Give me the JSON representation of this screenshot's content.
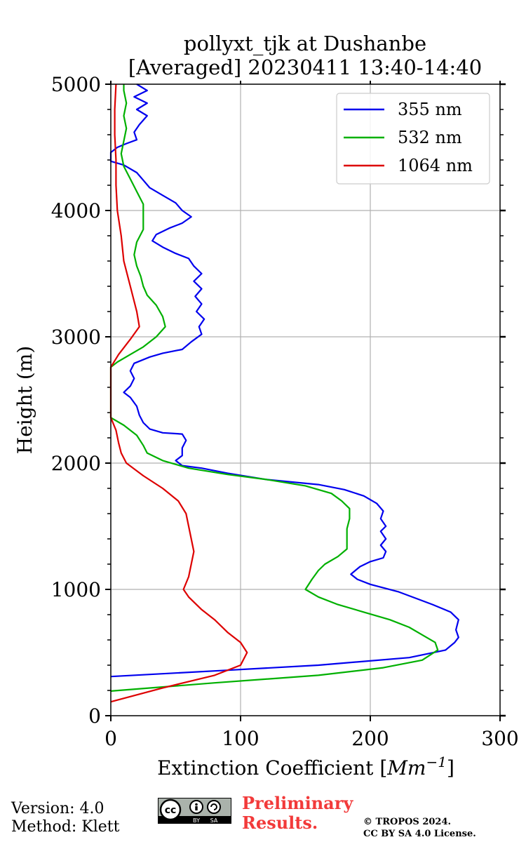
{
  "chart_data": {
    "type": "line",
    "title_line1": "pollyxt_tjk at Dushanbe",
    "title_line2": "[Averaged] 20230411 13:40-14:40",
    "xlabel_text": "Extinction Coefficient [",
    "xlabel_unit": "Mm",
    "xlabel_exp": "−1",
    "xlabel_end": "]",
    "ylabel": "Height (m)",
    "xlim": [
      0,
      300
    ],
    "ylim": [
      0,
      5000
    ],
    "xticks": [
      0,
      100,
      200,
      300
    ],
    "yticks": [
      0,
      1000,
      2000,
      3000,
      4000,
      5000
    ],
    "grid": true,
    "legend_position": "top-right",
    "series": [
      {
        "name": "355 nm",
        "color": "#0000ee",
        "points": [
          [
            0,
            310
          ],
          [
            90,
            360
          ],
          [
            160,
            400
          ],
          [
            230,
            460
          ],
          [
            258,
            520
          ],
          [
            265,
            580
          ],
          [
            268,
            620
          ],
          [
            266,
            680
          ],
          [
            268,
            760
          ],
          [
            262,
            820
          ],
          [
            248,
            880
          ],
          [
            235,
            930
          ],
          [
            222,
            980
          ],
          [
            200,
            1040
          ],
          [
            190,
            1080
          ],
          [
            185,
            1120
          ],
          [
            192,
            1180
          ],
          [
            200,
            1220
          ],
          [
            210,
            1250
          ],
          [
            212,
            1300
          ],
          [
            208,
            1350
          ],
          [
            212,
            1400
          ],
          [
            208,
            1460
          ],
          [
            212,
            1500
          ],
          [
            208,
            1560
          ],
          [
            210,
            1620
          ],
          [
            205,
            1680
          ],
          [
            195,
            1740
          ],
          [
            180,
            1790
          ],
          [
            160,
            1830
          ],
          [
            120,
            1870
          ],
          [
            90,
            1920
          ],
          [
            70,
            1960
          ],
          [
            55,
            1980
          ],
          [
            50,
            2020
          ],
          [
            55,
            2060
          ],
          [
            55,
            2120
          ],
          [
            58,
            2180
          ],
          [
            55,
            2230
          ],
          [
            40,
            2240
          ],
          [
            30,
            2270
          ],
          [
            25,
            2320
          ],
          [
            22,
            2380
          ],
          [
            20,
            2450
          ],
          [
            15,
            2520
          ],
          [
            10,
            2560
          ],
          [
            15,
            2610
          ],
          [
            18,
            2670
          ],
          [
            15,
            2730
          ],
          [
            18,
            2790
          ],
          [
            30,
            2840
          ],
          [
            40,
            2870
          ],
          [
            55,
            2900
          ],
          [
            62,
            2960
          ],
          [
            70,
            3020
          ],
          [
            68,
            3080
          ],
          [
            72,
            3140
          ],
          [
            66,
            3200
          ],
          [
            70,
            3260
          ],
          [
            65,
            3320
          ],
          [
            70,
            3380
          ],
          [
            64,
            3440
          ],
          [
            70,
            3500
          ],
          [
            64,
            3560
          ],
          [
            60,
            3620
          ],
          [
            50,
            3660
          ],
          [
            40,
            3710
          ],
          [
            32,
            3760
          ],
          [
            35,
            3810
          ],
          [
            45,
            3860
          ],
          [
            55,
            3900
          ],
          [
            62,
            3950
          ],
          [
            55,
            4000
          ],
          [
            50,
            4060
          ],
          [
            40,
            4120
          ],
          [
            30,
            4180
          ],
          [
            25,
            4240
          ],
          [
            20,
            4300
          ],
          [
            10,
            4360
          ],
          [
            0,
            4390
          ],
          [
            0,
            4460
          ],
          [
            5,
            4500
          ],
          [
            12,
            4530
          ],
          [
            20,
            4560
          ],
          [
            18,
            4620
          ],
          [
            22,
            4680
          ],
          [
            28,
            4750
          ],
          [
            20,
            4800
          ],
          [
            28,
            4850
          ],
          [
            18,
            4900
          ],
          [
            28,
            4950
          ],
          [
            20,
            5000
          ]
        ]
      },
      {
        "name": "532 nm",
        "color": "#00b000",
        "points": [
          [
            0,
            195
          ],
          [
            80,
            260
          ],
          [
            160,
            320
          ],
          [
            210,
            380
          ],
          [
            240,
            440
          ],
          [
            252,
            520
          ],
          [
            250,
            580
          ],
          [
            240,
            640
          ],
          [
            230,
            700
          ],
          [
            215,
            760
          ],
          [
            195,
            820
          ],
          [
            175,
            880
          ],
          [
            160,
            940
          ],
          [
            150,
            1000
          ],
          [
            155,
            1080
          ],
          [
            160,
            1150
          ],
          [
            165,
            1200
          ],
          [
            175,
            1260
          ],
          [
            182,
            1320
          ],
          [
            182,
            1400
          ],
          [
            182,
            1480
          ],
          [
            184,
            1560
          ],
          [
            184,
            1640
          ],
          [
            178,
            1700
          ],
          [
            170,
            1760
          ],
          [
            150,
            1820
          ],
          [
            120,
            1870
          ],
          [
            90,
            1910
          ],
          [
            60,
            1960
          ],
          [
            40,
            2020
          ],
          [
            28,
            2080
          ],
          [
            25,
            2140
          ],
          [
            20,
            2220
          ],
          [
            10,
            2300
          ],
          [
            0,
            2360
          ],
          [
            0,
            2760
          ],
          [
            5,
            2800
          ],
          [
            15,
            2860
          ],
          [
            25,
            2920
          ],
          [
            35,
            3000
          ],
          [
            42,
            3080
          ],
          [
            40,
            3160
          ],
          [
            35,
            3250
          ],
          [
            28,
            3330
          ],
          [
            25,
            3400
          ],
          [
            23,
            3480
          ],
          [
            20,
            3560
          ],
          [
            18,
            3650
          ],
          [
            20,
            3750
          ],
          [
            25,
            3850
          ],
          [
            25,
            3950
          ],
          [
            25,
            4050
          ],
          [
            20,
            4150
          ],
          [
            15,
            4250
          ],
          [
            10,
            4350
          ],
          [
            8,
            4450
          ],
          [
            10,
            4550
          ],
          [
            12,
            4650
          ],
          [
            10,
            4750
          ],
          [
            12,
            4850
          ],
          [
            10,
            4950
          ],
          [
            10,
            5000
          ]
        ]
      },
      {
        "name": "1064 nm",
        "color": "#dd0000",
        "points": [
          [
            0,
            110
          ],
          [
            40,
            220
          ],
          [
            80,
            320
          ],
          [
            100,
            400
          ],
          [
            105,
            500
          ],
          [
            100,
            580
          ],
          [
            90,
            660
          ],
          [
            80,
            760
          ],
          [
            70,
            840
          ],
          [
            60,
            940
          ],
          [
            56,
            1000
          ],
          [
            60,
            1100
          ],
          [
            62,
            1200
          ],
          [
            64,
            1300
          ],
          [
            62,
            1400
          ],
          [
            60,
            1500
          ],
          [
            58,
            1600
          ],
          [
            52,
            1700
          ],
          [
            40,
            1800
          ],
          [
            25,
            1900
          ],
          [
            12,
            2000
          ],
          [
            8,
            2080
          ],
          [
            6,
            2160
          ],
          [
            4,
            2260
          ],
          [
            0,
            2360
          ],
          [
            0,
            2760
          ],
          [
            6,
            2860
          ],
          [
            15,
            2980
          ],
          [
            22,
            3080
          ],
          [
            20,
            3200
          ],
          [
            15,
            3400
          ],
          [
            10,
            3600
          ],
          [
            8,
            3800
          ],
          [
            5,
            4000
          ],
          [
            4,
            4200
          ],
          [
            4,
            4400
          ],
          [
            3,
            4600
          ],
          [
            3,
            4800
          ],
          [
            4,
            5000
          ]
        ]
      }
    ]
  },
  "footer": {
    "version": "Version: 4.0",
    "method": "Method: Klett",
    "preliminary_line1": "Preliminary",
    "preliminary_line2": "Results.",
    "copyright_line1": "© TROPOS 2024.",
    "copyright_line2": "CC BY SA 4.0 License.",
    "license_badge_by": "BY",
    "license_badge_sa": "SA",
    "license_badge_cc": "cc"
  }
}
